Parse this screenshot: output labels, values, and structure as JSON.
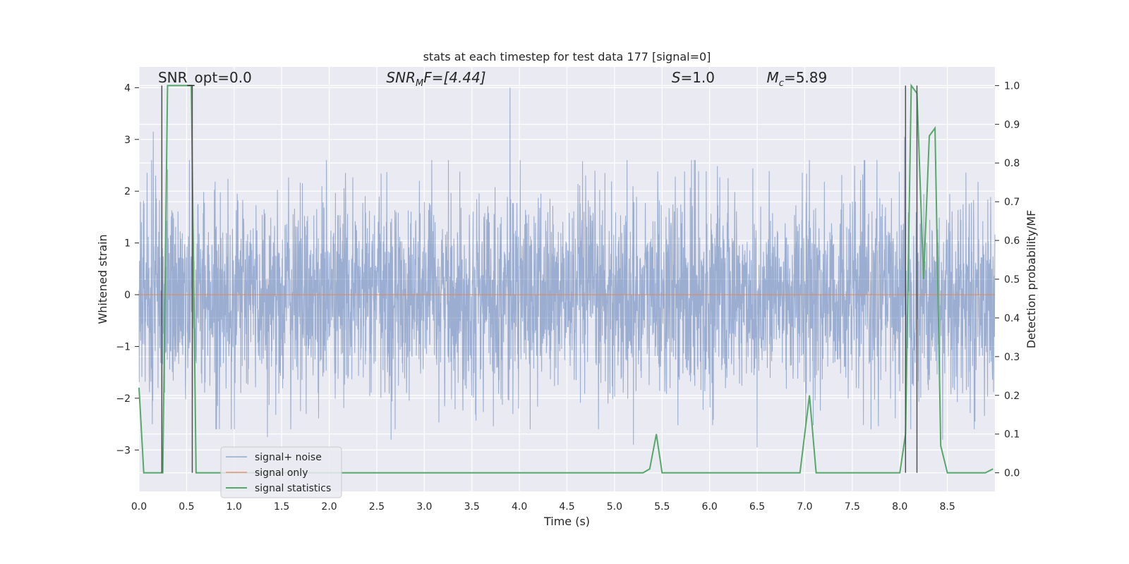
{
  "chart_data": {
    "type": "line",
    "title": "stats at each timestep for test data 177 [signal=0]",
    "xlabel": "Time (s)",
    "ylabel": "Whitened strain",
    "y2label": "Detection probability/MF",
    "xlim": [
      0.0,
      9.0
    ],
    "ylim": [
      -3.8,
      4.4
    ],
    "y2lim": [
      -0.048,
      1.048
    ],
    "xticks": [
      0.0,
      0.5,
      1.0,
      1.5,
      2.0,
      2.5,
      3.0,
      3.5,
      4.0,
      4.5,
      5.0,
      5.5,
      6.0,
      6.5,
      7.0,
      7.5,
      8.0,
      8.5
    ],
    "xtick_labels": [
      "0.0",
      "0.5",
      "1.0",
      "1.5",
      "2.0",
      "2.5",
      "3.0",
      "3.5",
      "4.0",
      "4.5",
      "5.0",
      "5.5",
      "6.0",
      "6.5",
      "7.0",
      "7.5",
      "8.0",
      "8.5"
    ],
    "yticks": [
      -3,
      -2,
      -1,
      0,
      1,
      2,
      3,
      4
    ],
    "ytick_labels": [
      "−3",
      "−2",
      "−1",
      "0",
      "1",
      "2",
      "3",
      "4"
    ],
    "y2ticks": [
      0.0,
      0.1,
      0.2,
      0.3,
      0.4,
      0.5,
      0.6,
      0.7,
      0.8,
      0.9,
      1.0
    ],
    "y2tick_labels": [
      "0.0",
      "0.1",
      "0.2",
      "0.3",
      "0.4",
      "0.5",
      "0.6",
      "0.7",
      "0.8",
      "0.9",
      "1.0"
    ],
    "annotations": [
      {
        "text": "SNR_opt=0.0",
        "x": 0.2,
        "y": 4.1
      },
      {
        "text": "SNR_MF=[4.44]",
        "x": 2.6,
        "y": 4.1
      },
      {
        "text": "S=1.0",
        "x": 5.6,
        "y": 4.1
      },
      {
        "text": "M_c=5.89",
        "x": 6.6,
        "y": 4.1
      }
    ],
    "annotation_parts": {
      "snr_opt": "SNR_opt=0.0",
      "snr_mf_main": "SNR",
      "snr_mf_sub": "M",
      "snr_mf_rest": "F=[4.44]",
      "s_var": "S",
      "s_val": "=1.0",
      "mc_var": "M",
      "mc_sub": "c",
      "mc_val": "=5.89"
    },
    "vertical_lines": [
      0.24,
      0.56,
      8.06,
      8.18
    ],
    "series": [
      {
        "name": "signal+ noise",
        "color": "#4c72b0",
        "note": "whitened noise strain ~N(0,1), dense; notable peaks",
        "peaks": [
          [
            0.15,
            3.15
          ],
          [
            1.35,
            2.7
          ],
          [
            2.65,
            2.9
          ],
          [
            3.9,
            4.0
          ],
          [
            4.9,
            2.35
          ],
          [
            5.85,
            2.6
          ],
          [
            8.05,
            3.05
          ],
          [
            1.35,
            -2.75
          ],
          [
            2.65,
            -2.8
          ],
          [
            5.2,
            -2.9
          ],
          [
            6.5,
            -2.95
          ],
          [
            8.45,
            -2.8
          ]
        ]
      },
      {
        "name": "signal only",
        "color": "#dd8452",
        "x": [
          0.0,
          9.0
        ],
        "y": [
          0.0,
          0.0
        ]
      },
      {
        "name": "signal statistics",
        "color": "#55a868",
        "axis": "right",
        "x": [
          0.0,
          0.05,
          0.25,
          0.3,
          0.35,
          0.45,
          0.55,
          0.6,
          0.65,
          0.7,
          1.0,
          2.0,
          3.0,
          4.0,
          5.0,
          5.3,
          5.37,
          5.44,
          5.5,
          5.55,
          6.0,
          6.5,
          6.95,
          7.05,
          7.12,
          7.2,
          7.5,
          8.0,
          8.06,
          8.12,
          8.18,
          8.25,
          8.31,
          8.37,
          8.43,
          8.5,
          8.6,
          8.75,
          8.9,
          8.98
        ],
        "y": [
          0.22,
          0.0,
          0.0,
          1.0,
          1.0,
          1.0,
          1.0,
          0.0,
          0.0,
          0.0,
          0.0,
          0.0,
          0.0,
          0.0,
          0.0,
          0.0,
          0.01,
          0.1,
          0.0,
          0.0,
          0.0,
          0.0,
          0.0,
          0.2,
          0.0,
          0.0,
          0.0,
          0.0,
          0.1,
          1.0,
          0.98,
          0.5,
          0.87,
          0.89,
          0.07,
          0.0,
          0.0,
          0.0,
          0.0,
          0.01
        ]
      }
    ],
    "legend": {
      "placement": "lower-left",
      "entries": [
        "signal+ noise",
        "signal only",
        "signal statistics"
      ]
    },
    "grid": true
  },
  "colors": {
    "axes_bg": "#eaeaf2",
    "grid": "#ffffff",
    "noise": "#4c72b0",
    "signal": "#dd8452",
    "stats": "#55a868",
    "vline": "#505050"
  }
}
